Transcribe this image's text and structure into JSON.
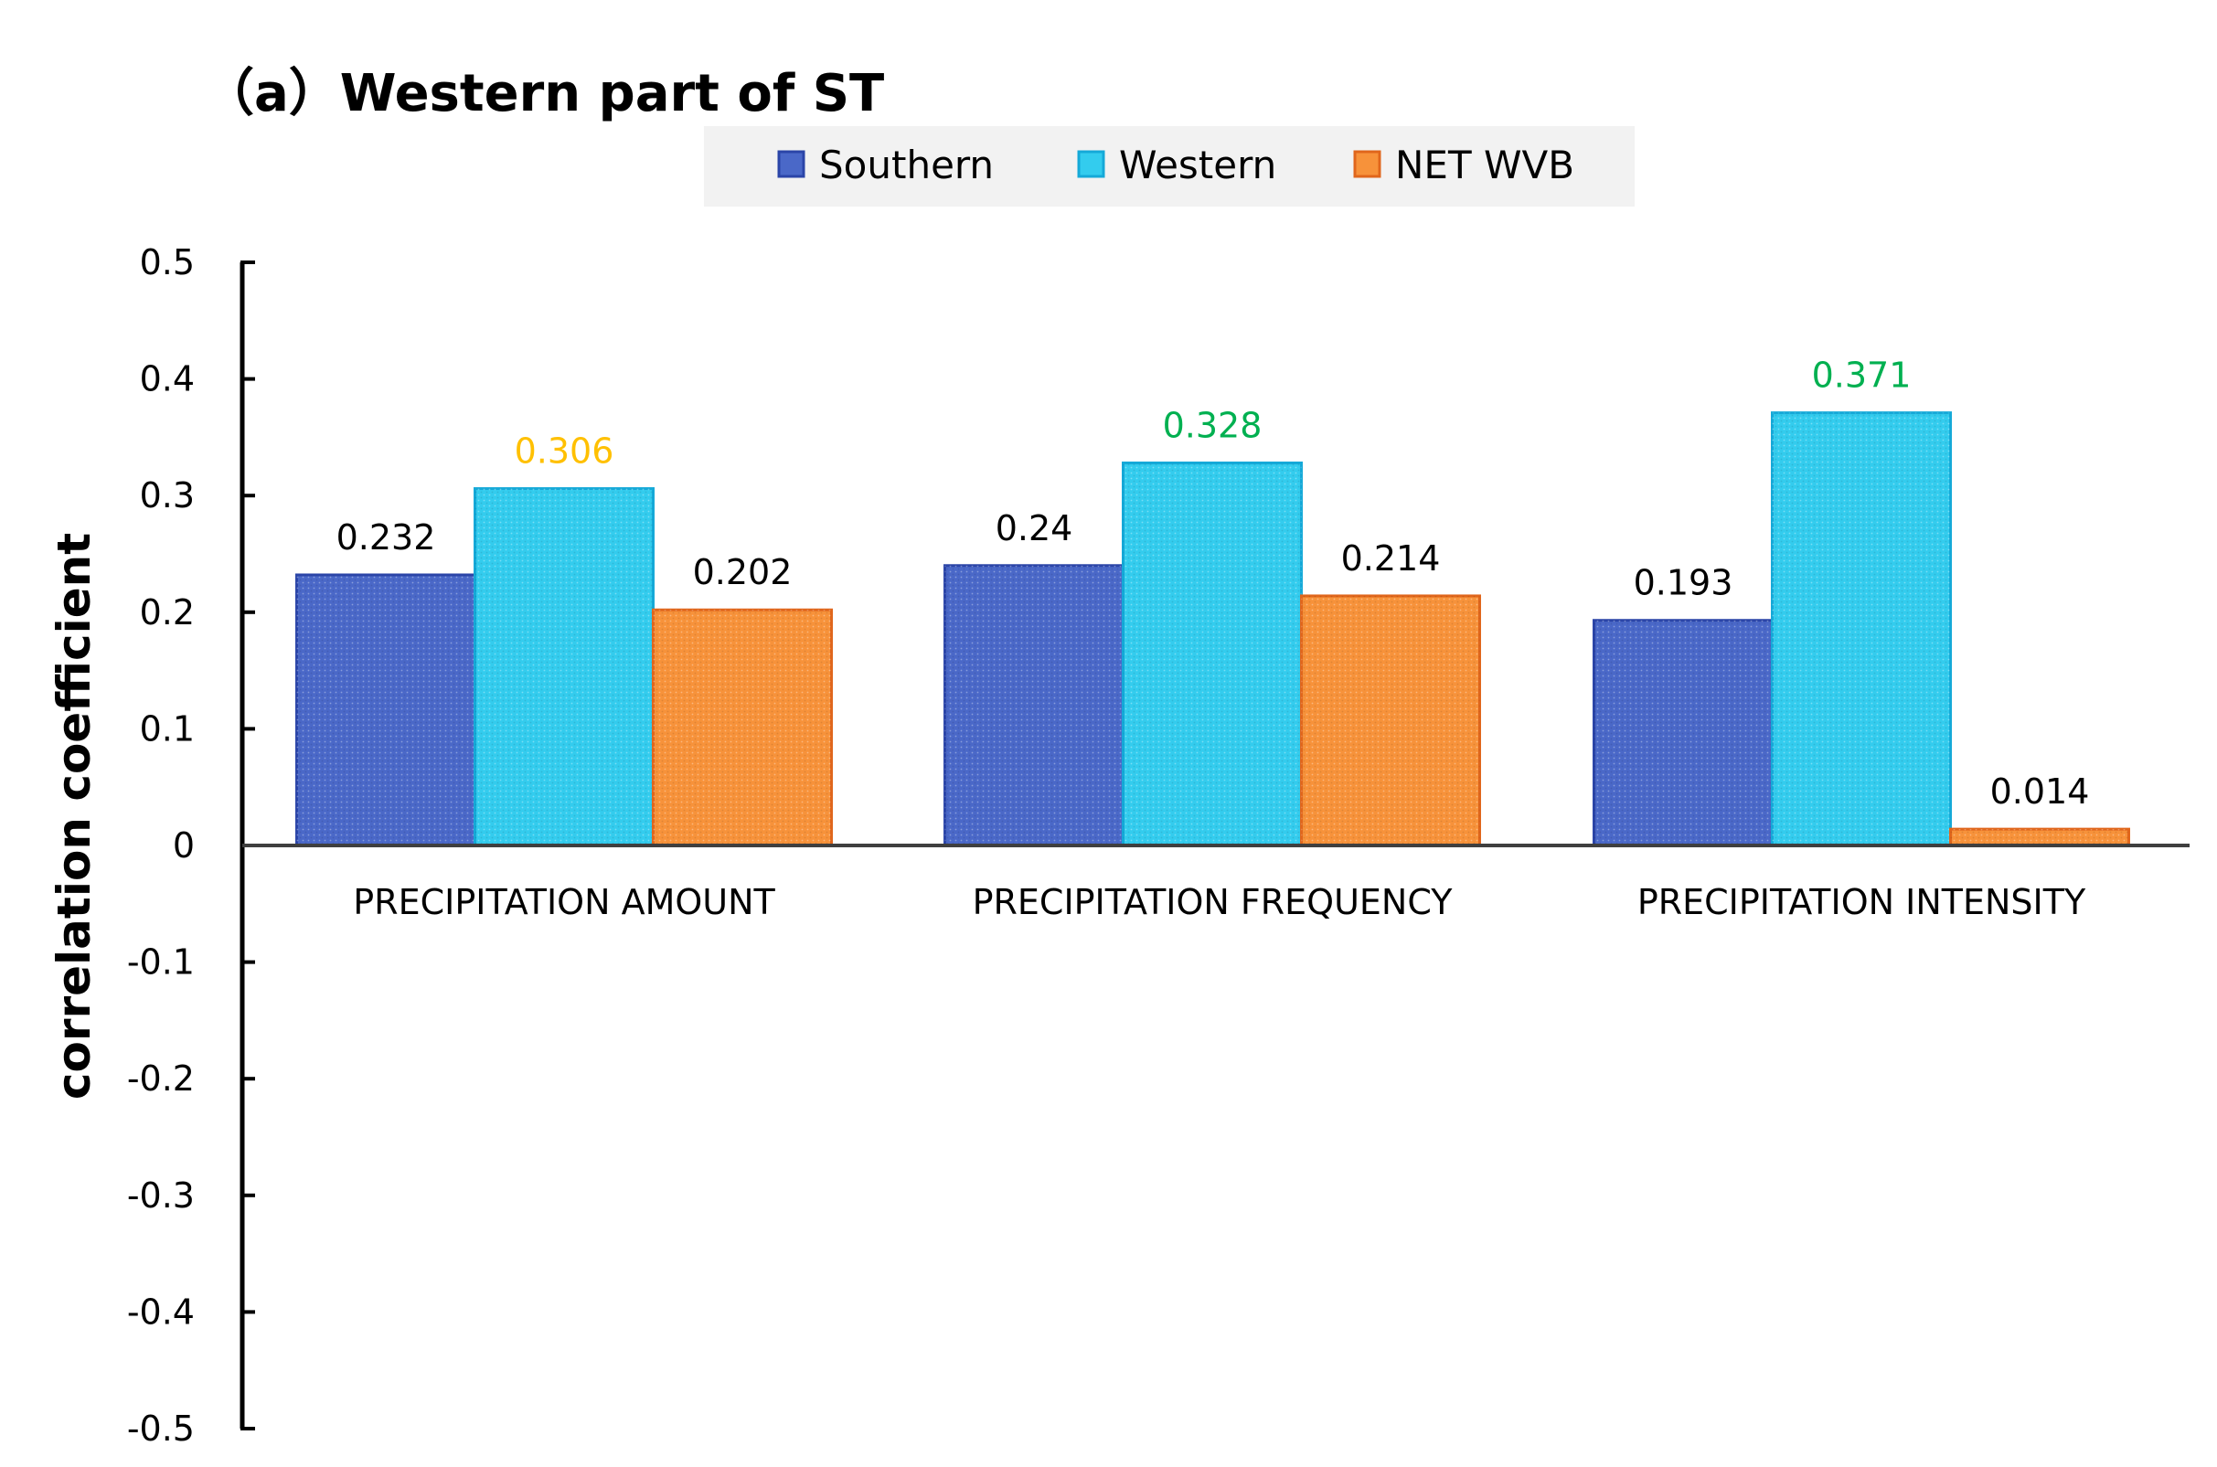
{
  "chart_data": {
    "type": "bar",
    "title": "（a）Western part of ST",
    "xlabel": "",
    "ylabel": "correlation coefficient",
    "ylim": [
      -0.5,
      0.5
    ],
    "yticks": [
      0.5,
      0.4,
      0.3,
      0.2,
      0.1,
      0,
      -0.1,
      -0.2,
      -0.3,
      -0.4,
      -0.5
    ],
    "ytick_labels": [
      "0.5",
      "0.4",
      "0.3",
      "0.2",
      "0.1",
      "0",
      "-0.1",
      "-0.2",
      "-0.3",
      "-0.4",
      "-0.5"
    ],
    "categories": [
      "PRECIPITATION AMOUNT",
      "PRECIPITATION FREQUENCY",
      "PRECIPITATION INTENSITY"
    ],
    "legend_position": "top-center",
    "grid": false,
    "series": [
      {
        "name": "Southern",
        "color": "#4a68c8",
        "edge": "#2b45a8",
        "values": [
          0.232,
          0.24,
          0.193
        ],
        "labels": [
          "0.232",
          "0.24",
          "0.193"
        ],
        "label_colors": [
          "#000000",
          "#000000",
          "#000000"
        ]
      },
      {
        "name": "Western",
        "color": "#33ccee",
        "edge": "#15a9d8",
        "values": [
          0.306,
          0.328,
          0.371
        ],
        "labels": [
          "0.306",
          "0.328",
          "0.371"
        ],
        "label_colors": [
          "#ffc000",
          "#00b050",
          "#00b050"
        ]
      },
      {
        "name": "NET WVB",
        "color": "#f7923a",
        "edge": "#e0661c",
        "values": [
          0.202,
          0.214,
          0.014
        ],
        "labels": [
          "0.202",
          "0.214",
          "0.014"
        ],
        "label_colors": [
          "#000000",
          "#000000",
          "#000000"
        ]
      }
    ]
  }
}
